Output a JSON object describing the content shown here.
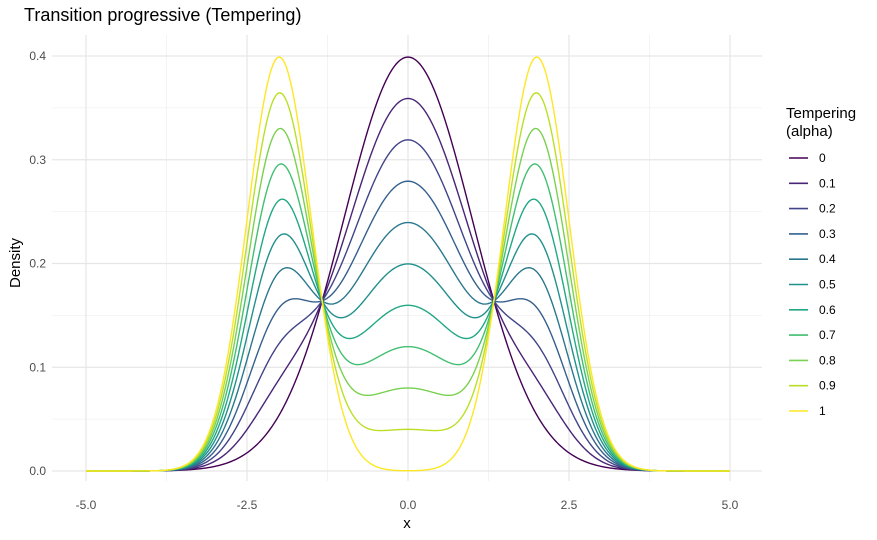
{
  "title": "Transition progressive (Tempering)",
  "chart_data": {
    "type": "line",
    "title": "Transition progressive (Tempering)",
    "xlabel": "x",
    "ylabel": "Density",
    "xlim": [
      -5,
      5
    ],
    "ylim": [
      0,
      0.4
    ],
    "x_ticks": [
      "-5.0",
      "-2.5",
      "0.0",
      "2.5",
      "5.0"
    ],
    "y_ticks": [
      "0.0",
      "0.1",
      "0.2",
      "0.3",
      "0.4"
    ],
    "grid": true,
    "legend": {
      "title_lines": [
        "Tempering",
        "(alpha)"
      ],
      "position": "right"
    },
    "series": [
      {
        "name": "0",
        "alpha": 0.0,
        "color": "#440154"
      },
      {
        "name": "0.1",
        "alpha": 0.1,
        "color": "#482576"
      },
      {
        "name": "0.2",
        "alpha": 0.2,
        "color": "#414487"
      },
      {
        "name": "0.3",
        "alpha": 0.3,
        "color": "#35608D"
      },
      {
        "name": "0.4",
        "alpha": 0.4,
        "color": "#2A788E"
      },
      {
        "name": "0.5",
        "alpha": 0.5,
        "color": "#21908C"
      },
      {
        "name": "0.6",
        "alpha": 0.6,
        "color": "#22A884"
      },
      {
        "name": "0.7",
        "alpha": 0.7,
        "color": "#43BF71"
      },
      {
        "name": "0.8",
        "alpha": 0.8,
        "color": "#7AD151"
      },
      {
        "name": "0.9",
        "alpha": 0.9,
        "color": "#BBDF27"
      },
      {
        "name": "1",
        "alpha": 1.0,
        "color": "#FDE725"
      }
    ],
    "function": "(1 - alpha) * N(x; 0, 1) + alpha * (0.5 * N(x; -2, 0.5) + 0.5 * N(x; 2, 0.5))"
  }
}
